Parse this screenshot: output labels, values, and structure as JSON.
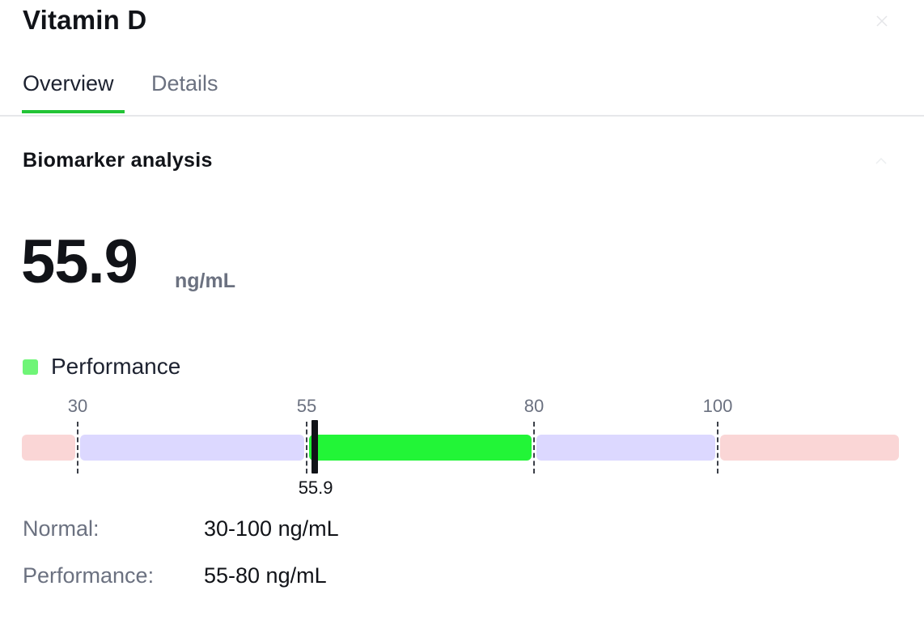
{
  "header": {
    "title": "Vitamin D"
  },
  "tabs": [
    {
      "label": "Overview",
      "active": true
    },
    {
      "label": "Details",
      "active": false
    }
  ],
  "colors": {
    "accent": "#22c436",
    "performance": "#22f537",
    "performance_legend": "#6ff577",
    "normal": "#dcd8ff",
    "out_of_range": "#fad6d6"
  },
  "analysis": {
    "section_title": "Biomarker analysis",
    "value": "55.9",
    "unit": "ng/mL",
    "legend_label": "Performance"
  },
  "chart_data": {
    "type": "range-bar",
    "value": 55.9,
    "value_label": "55.9",
    "ticks": [
      30,
      55,
      80,
      100
    ],
    "tick_labels": [
      "30",
      "55",
      "80",
      "100"
    ],
    "segments": [
      {
        "band": "out-of-range",
        "from": null,
        "to": 30
      },
      {
        "band": "normal",
        "from": 30,
        "to": 55
      },
      {
        "band": "performance",
        "from": 55,
        "to": 80
      },
      {
        "band": "normal",
        "from": 80,
        "to": 100
      },
      {
        "band": "out-of-range",
        "from": 100,
        "to": null
      }
    ]
  },
  "ranges": [
    {
      "label": "Normal:",
      "value": "30-100 ng/mL"
    },
    {
      "label": "Performance:",
      "value": "55-80 ng/mL"
    }
  ]
}
